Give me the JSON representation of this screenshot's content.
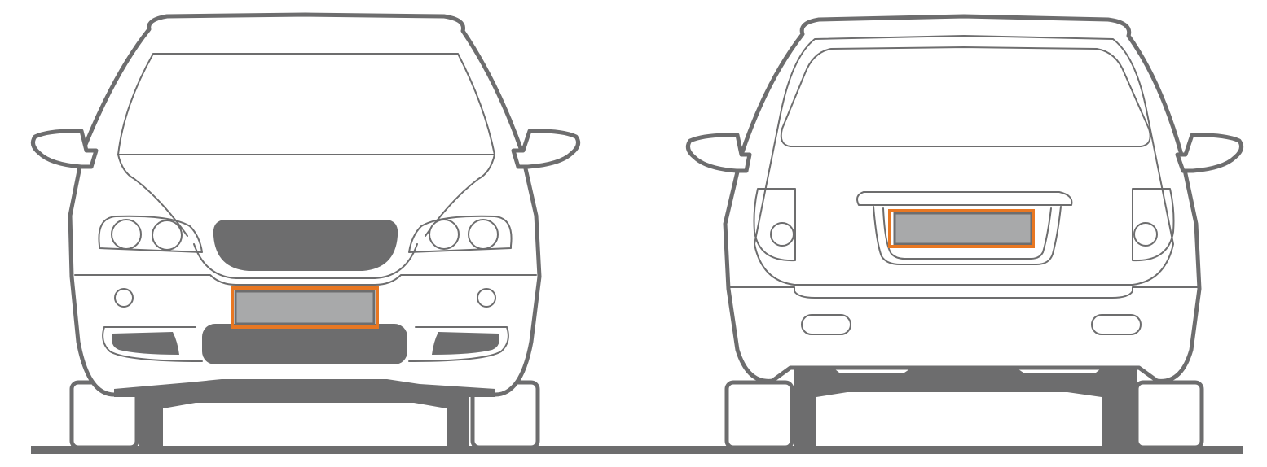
{
  "colors": {
    "body_stroke": "#6d6d6e",
    "body_fill": "#ffffff",
    "dark_fill": "#6d6d6e",
    "plate_fill": "#a8a9aa",
    "plate_highlight": "#e87722",
    "ground": "#6d6d6e"
  },
  "views": [
    {
      "id": "front",
      "highlight": "license-plate"
    },
    {
      "id": "rear",
      "highlight": "license-plate"
    }
  ]
}
